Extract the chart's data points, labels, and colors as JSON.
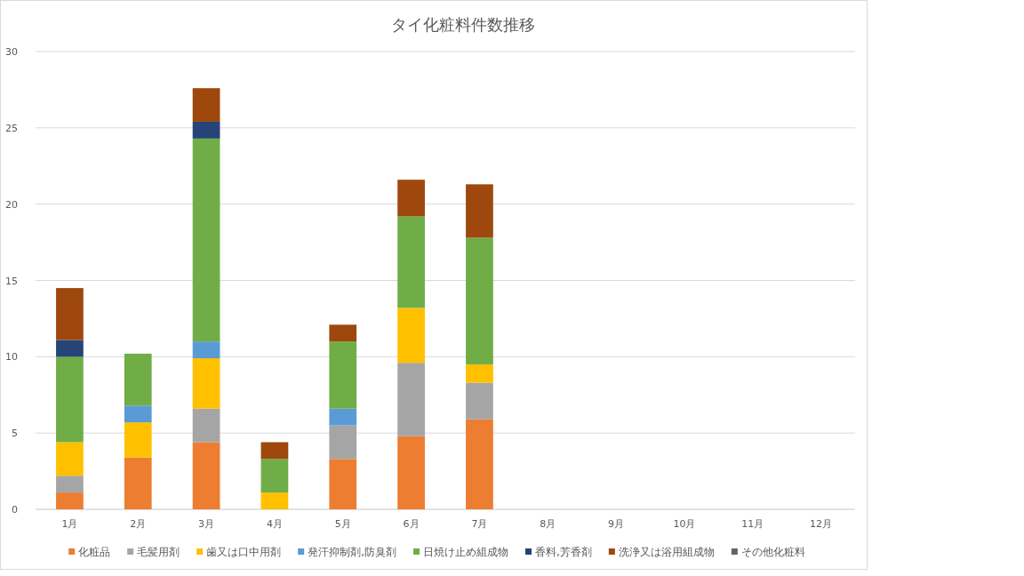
{
  "chart_data": {
    "type": "bar",
    "title": "タイ化粧料件数推移",
    "stacked": true,
    "categories": [
      "1月",
      "2月",
      "3月",
      "4月",
      "5月",
      "6月",
      "7月",
      "8月",
      "9月",
      "10月",
      "11月",
      "12月"
    ],
    "ylim": [
      0,
      30
    ],
    "yticks": [
      0,
      5,
      10,
      15,
      20,
      25,
      30
    ],
    "grid": "y",
    "legend": "bottom",
    "series": [
      {
        "name": "化粧品",
        "color": "#ed7d31",
        "values": [
          1.1,
          3.4,
          4.4,
          0,
          3.3,
          4.8,
          5.9,
          null,
          null,
          null,
          null,
          null
        ]
      },
      {
        "name": "毛髪用剤",
        "color": "#a5a5a5",
        "values": [
          1.1,
          0,
          2.2,
          0,
          2.2,
          4.8,
          2.4,
          null,
          null,
          null,
          null,
          null
        ]
      },
      {
        "name": "歯又は口中用剤",
        "color": "#ffc000",
        "values": [
          2.2,
          2.3,
          3.3,
          1.1,
          0,
          3.6,
          1.2,
          null,
          null,
          null,
          null,
          null
        ]
      },
      {
        "name": "発汗抑制剤,防臭剤",
        "color": "#5b9bd5",
        "values": [
          0,
          1.1,
          1.1,
          0,
          1.1,
          0,
          0,
          null,
          null,
          null,
          null,
          null
        ]
      },
      {
        "name": "日焼け止め組成物",
        "color": "#70ad47",
        "values": [
          5.6,
          3.4,
          13.3,
          2.2,
          4.4,
          6.0,
          8.3,
          null,
          null,
          null,
          null,
          null
        ]
      },
      {
        "name": "香料,芳香剤",
        "color": "#264478",
        "values": [
          1.1,
          0,
          1.1,
          0,
          0,
          0,
          0,
          null,
          null,
          null,
          null,
          null
        ]
      },
      {
        "name": "洗浄又は浴用組成物",
        "color": "#9e480e",
        "values": [
          3.4,
          0,
          2.2,
          1.1,
          1.1,
          2.4,
          3.5,
          null,
          null,
          null,
          null,
          null
        ]
      },
      {
        "name": "その他化粧料",
        "color": "#636363",
        "values": [
          0,
          0,
          0,
          0,
          0,
          0,
          0,
          null,
          null,
          null,
          null,
          null
        ]
      }
    ]
  }
}
